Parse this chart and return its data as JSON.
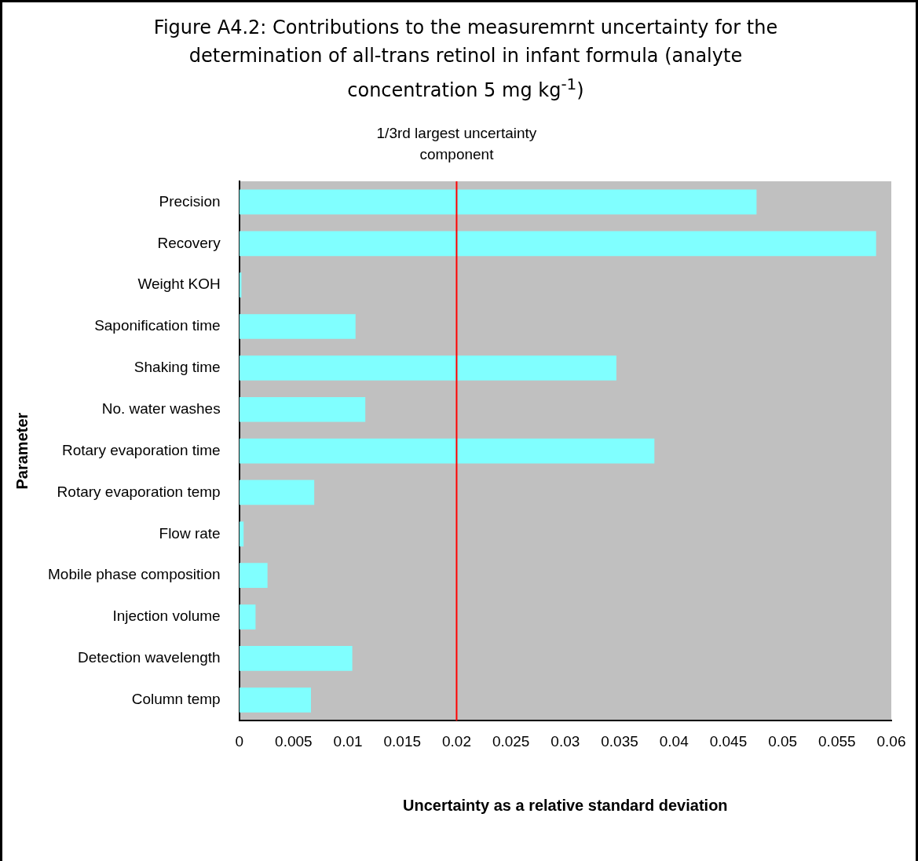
{
  "chart_data": {
    "type": "bar",
    "orientation": "horizontal",
    "title": "Figure A4.2: Contributions to the measuremrnt uncertainty for the determination of all-trans retinol in infant formula (analyte concentration 5 mg kg$^{-1}$)",
    "xlabel": "Uncertainty as a relative standard deviation",
    "ylabel": "Parameter",
    "categories": [
      "Precision",
      "Recovery",
      "Weight KOH",
      "Saponification time",
      "Shaking time",
      "No. water washes",
      "Rotary evaporation time",
      "Rotary evaporation temp",
      "Flow rate",
      "Mobile phase composition",
      "Injection volume",
      "Detection wavelength",
      "Column temp"
    ],
    "values": [
      0.0476,
      0.0586,
      0.0002,
      0.0107,
      0.0347,
      0.0116,
      0.0382,
      0.0069,
      0.0004,
      0.0026,
      0.0015,
      0.0104,
      0.0066
    ],
    "color": "#80ffff",
    "xlim": [
      0,
      0.06
    ],
    "xticks": [
      0,
      0.005,
      0.01,
      0.015,
      0.02,
      0.025,
      0.03,
      0.035,
      0.04,
      0.045,
      0.05,
      0.055,
      0.06
    ],
    "ref_lines": [
      {
        "axis": "x",
        "value": 0.02,
        "label": "1/3rd largest uncertainty component",
        "color": "#ff0000"
      }
    ],
    "grid": false,
    "legend": false
  }
}
